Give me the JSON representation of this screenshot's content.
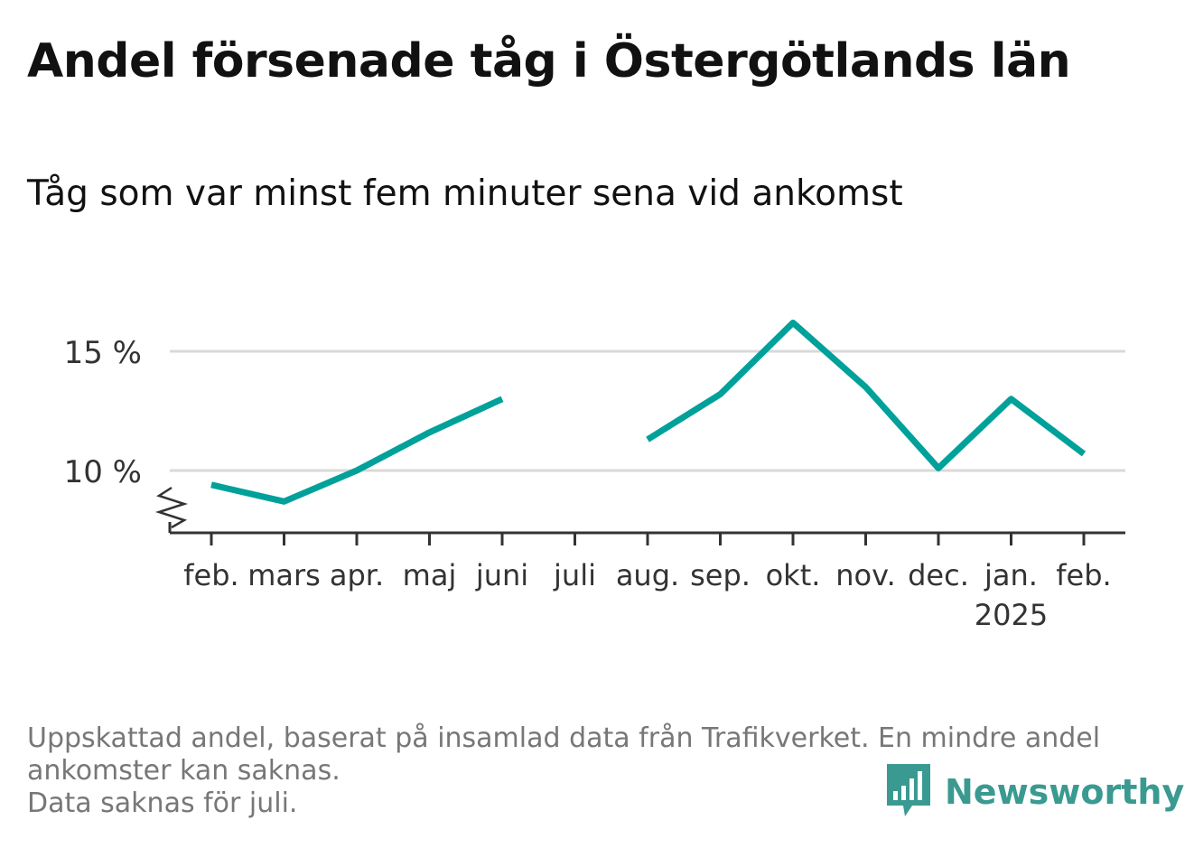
{
  "title": "Andel försenade tåg i Östergötlands län",
  "subtitle": "Tåg som var minst fem minuter sena vid ankomst",
  "footnote": {
    "line1": "Uppskattad andel, baserat på insamlad data från Trafikverket. En mindre andel",
    "line2": "ankomster kan saknas.",
    "line3": "Data saknas för juli."
  },
  "brand": {
    "name": "Newsworthy",
    "color": "#3a9a91"
  },
  "chart_data": {
    "type": "line",
    "categories": [
      "feb.",
      "mars",
      "apr.",
      "maj",
      "juni",
      "juli",
      "aug.",
      "sep.",
      "okt.",
      "nov.",
      "dec.",
      "jan.",
      "feb."
    ],
    "year_label": {
      "index": 11,
      "text": "2025"
    },
    "series": [
      {
        "color": "#00a19a",
        "values": [
          9.4,
          8.7,
          10.0,
          11.6,
          13.0,
          null,
          11.3,
          13.2,
          16.2,
          13.5,
          10.1,
          13.0,
          10.7
        ]
      }
    ],
    "yticks": [
      10,
      15
    ],
    "ytick_labels": [
      "10 %",
      "15 %"
    ],
    "ylim": [
      7.5,
      17
    ],
    "axis_break": true,
    "grid": true,
    "legend": "none"
  }
}
